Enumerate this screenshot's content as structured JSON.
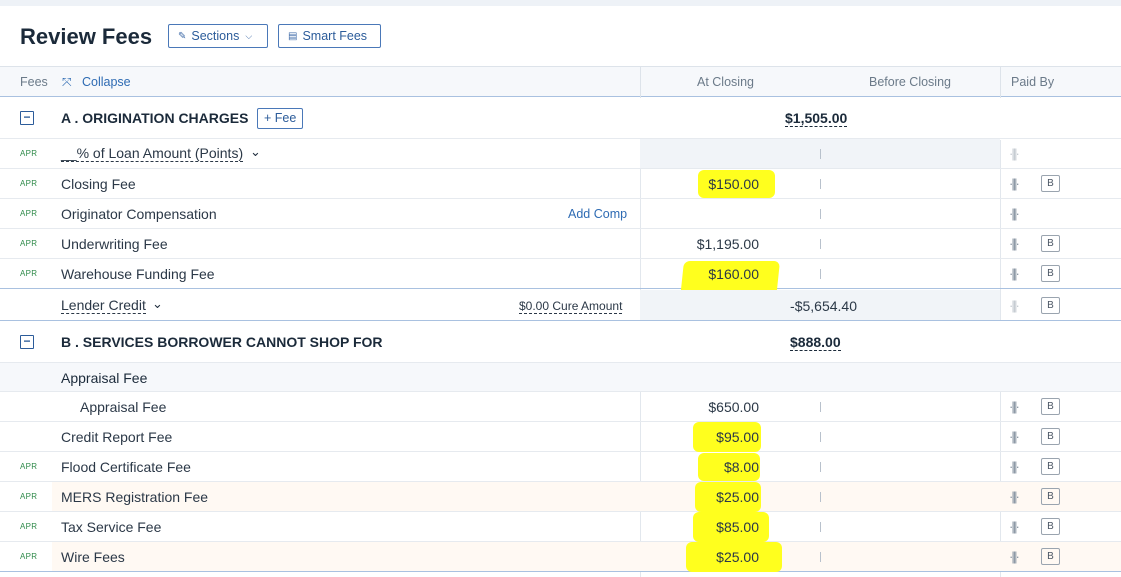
{
  "header": {
    "title": "Review Fees",
    "sections_label": "Sections",
    "smart_fees_label": "Smart Fees"
  },
  "columns": {
    "fees": "Fees",
    "collapse": "Collapse",
    "at_closing": "At Closing",
    "before_closing": "Before Closing",
    "paid_by": "Paid By"
  },
  "icons": {
    "sections": "pencil-icon",
    "smart_fees": "document-icon",
    "collapse": "collapse-arrows-icon",
    "split": "split-icon",
    "section_toggle": "minus-square-icon"
  },
  "highlight_color": "#ffff1e",
  "section_a": {
    "toggle": "−",
    "title": "A . ORIGINATION CHARGES",
    "fee_button": "+ Fee",
    "total": "$1,505.00",
    "rows": [
      {
        "apr": "APR",
        "label": "__% of Loan Amount (Points)",
        "chevron": "⌄",
        "amount": "",
        "badge": ""
      },
      {
        "apr": "APR",
        "label": "Closing Fee",
        "amount": "$150.00",
        "badge": "B"
      },
      {
        "apr": "APR",
        "label": "Originator Compensation",
        "link": "Add Comp",
        "amount": "",
        "badge": ""
      },
      {
        "apr": "APR",
        "label": "Underwriting Fee",
        "amount": "$1,195.00",
        "badge": "B"
      },
      {
        "apr": "APR",
        "label": "Warehouse Funding Fee",
        "amount": "$160.00",
        "badge": "B"
      }
    ],
    "lender_credit": {
      "label": "Lender Credit",
      "chevron": "⌄",
      "cure": "$0.00 Cure Amount",
      "amount": "-$5,654.40",
      "badge": "B"
    }
  },
  "section_b": {
    "toggle": "−",
    "title": "B . SERVICES BORROWER CANNOT SHOP FOR",
    "total": "$888.00",
    "group_label": "Appraisal Fee",
    "rows": [
      {
        "apr": "",
        "label": "Appraisal Fee",
        "amount": "$650.00",
        "badge": "B"
      },
      {
        "apr": "",
        "label": "Credit Report Fee",
        "amount": "$95.00",
        "badge": "B"
      },
      {
        "apr": "APR",
        "label": "Flood Certificate Fee",
        "amount": "$8.00",
        "badge": "B"
      },
      {
        "apr": "APR",
        "label": "MERS Registration Fee",
        "amount": "$25.00",
        "badge": "B"
      },
      {
        "apr": "APR",
        "label": "Tax Service Fee",
        "amount": "$85.00",
        "badge": "B"
      },
      {
        "apr": "APR",
        "label": "Wire Fees",
        "amount": "$25.00",
        "badge": "B"
      }
    ]
  }
}
